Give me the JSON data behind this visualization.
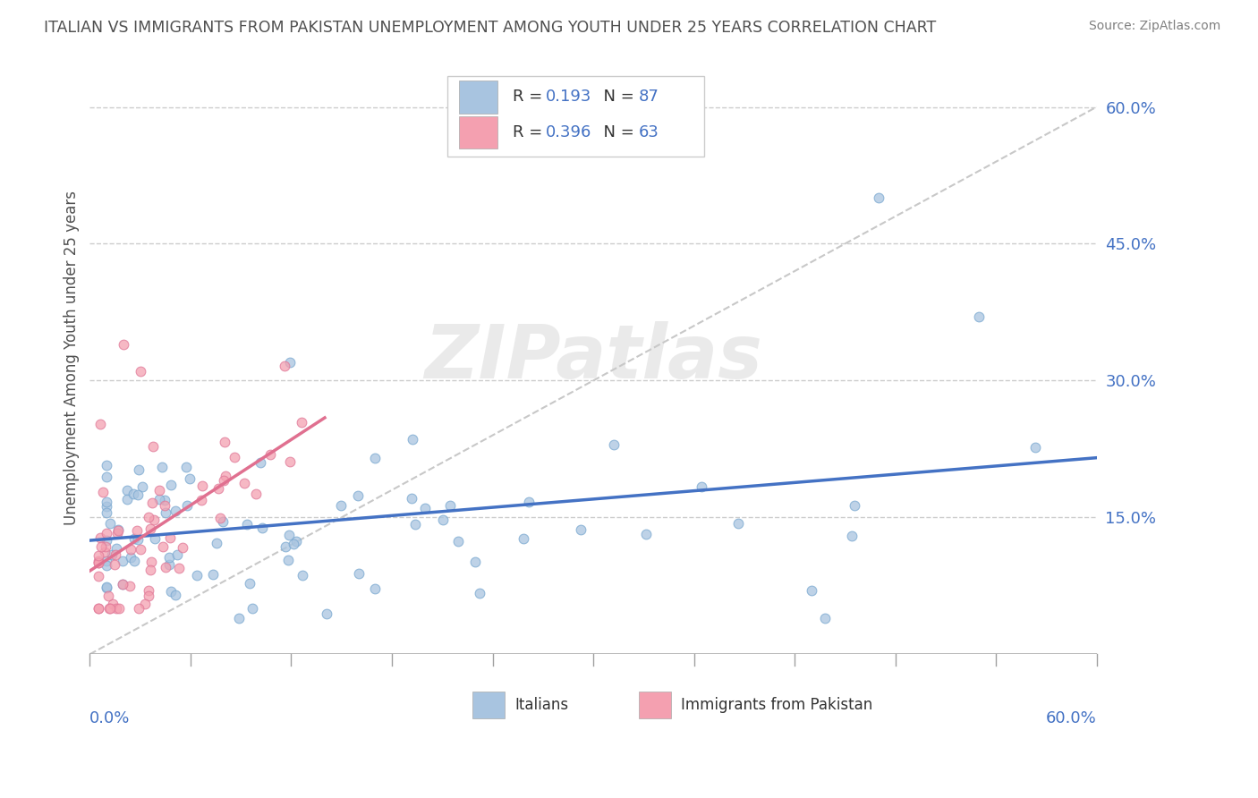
{
  "title": "ITALIAN VS IMMIGRANTS FROM PAKISTAN UNEMPLOYMENT AMONG YOUTH UNDER 25 YEARS CORRELATION CHART",
  "source": "Source: ZipAtlas.com",
  "xmin": 0.0,
  "xmax": 0.6,
  "ymin": 0.0,
  "ymax": 0.65,
  "italians_R": 0.193,
  "italians_N": 87,
  "pakistan_R": 0.396,
  "pakistan_N": 63,
  "italian_color": "#a8c4e0",
  "pakistan_color": "#f4a0b0",
  "italian_edge_color": "#7aa8d0",
  "pakistan_edge_color": "#e07898",
  "italian_line_color": "#4472c4",
  "pakistan_line_color": "#e07090",
  "grid_color": "#cccccc",
  "axis_color": "#4472c4",
  "title_color": "#505050",
  "source_color": "#808080",
  "background": "#ffffff",
  "ylabel": "Unemployment Among Youth under 25 years",
  "ytick_vals": [
    0.15,
    0.3,
    0.45,
    0.6
  ],
  "ytick_labels": [
    "15.0%",
    "30.0%",
    "45.0%",
    "60.0%"
  ],
  "watermark_text": "ZIPatlas",
  "legend_box_color": "#4472c4",
  "bottom_legend_italians": "Italians",
  "bottom_legend_pakistan": "Immigrants from Pakistan"
}
